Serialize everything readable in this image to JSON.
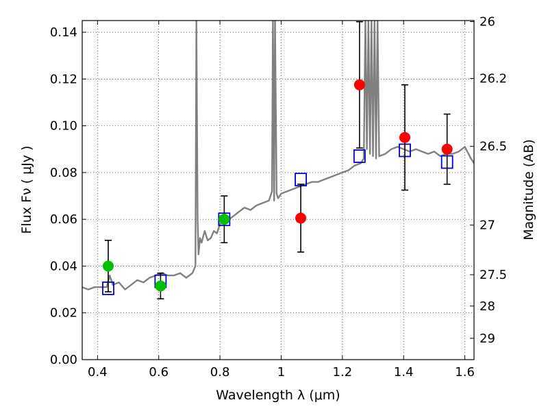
{
  "chart_data": {
    "type": "scatter",
    "xlabel": "Wavelength  λ (μm)",
    "ylabel": "Flux  Fν  ( μJy )",
    "ylabel_right": "Magnitude (AB)",
    "xlim": [
      0.35,
      1.63
    ],
    "ylim": [
      0,
      0.145
    ],
    "grid": true,
    "x_ticks": [
      {
        "value": 0.4,
        "label": "0.4"
      },
      {
        "value": 0.6,
        "label": "0.6"
      },
      {
        "value": 0.8,
        "label": "0.8"
      },
      {
        "value": 1.0,
        "label": "1"
      },
      {
        "value": 1.2,
        "label": "1.2"
      },
      {
        "value": 1.4,
        "label": "1.4"
      },
      {
        "value": 1.6,
        "label": "1.6"
      }
    ],
    "y_ticks": [
      {
        "value": 0.0,
        "label": "0.00"
      },
      {
        "value": 0.02,
        "label": "0.02"
      },
      {
        "value": 0.04,
        "label": "0.04"
      },
      {
        "value": 0.06,
        "label": "0.06"
      },
      {
        "value": 0.08,
        "label": "0.08"
      },
      {
        "value": 0.1,
        "label": "0.10"
      },
      {
        "value": 0.12,
        "label": "0.12"
      },
      {
        "value": 0.14,
        "label": "0.14"
      }
    ],
    "mag_ticks": [
      {
        "value": 26,
        "label": "26"
      },
      {
        "value": 26.2,
        "label": "26.2"
      },
      {
        "value": 26.5,
        "label": "26.5"
      },
      {
        "value": 27,
        "label": "27"
      },
      {
        "value": 27.5,
        "label": "27.5"
      },
      {
        "value": 28,
        "label": "28"
      },
      {
        "value": 29,
        "label": "29"
      }
    ],
    "series": [
      {
        "style": "line",
        "color": "#808080",
        "x": [
          0.35,
          0.37,
          0.39,
          0.41,
          0.43,
          0.44,
          0.45,
          0.47,
          0.49,
          0.51,
          0.53,
          0.55,
          0.57,
          0.59,
          0.61,
          0.63,
          0.65,
          0.67,
          0.69,
          0.71,
          0.72,
          0.723,
          0.727,
          0.73,
          0.735,
          0.74,
          0.75,
          0.76,
          0.77,
          0.78,
          0.79,
          0.8,
          0.82,
          0.84,
          0.86,
          0.88,
          0.9,
          0.92,
          0.94,
          0.96,
          0.97,
          0.973,
          0.977,
          0.98,
          0.985,
          0.99,
          1.0,
          1.02,
          1.04,
          1.06,
          1.08,
          1.1,
          1.12,
          1.14,
          1.16,
          1.18,
          1.2,
          1.22,
          1.24,
          1.26,
          1.27,
          1.275,
          1.28,
          1.285,
          1.29,
          1.295,
          1.3,
          1.305,
          1.31,
          1.315,
          1.32,
          1.34,
          1.36,
          1.38,
          1.4,
          1.42,
          1.44,
          1.46,
          1.48,
          1.5,
          1.52,
          1.54,
          1.56,
          1.58,
          1.6,
          1.62,
          1.63
        ],
        "y": [
          0.031,
          0.03,
          0.031,
          0.031,
          0.031,
          0.036,
          0.032,
          0.033,
          0.03,
          0.032,
          0.034,
          0.033,
          0.035,
          0.036,
          0.037,
          0.036,
          0.036,
          0.037,
          0.035,
          0.037,
          0.04,
          0.145,
          0.06,
          0.045,
          0.052,
          0.05,
          0.055,
          0.051,
          0.052,
          0.055,
          0.054,
          0.058,
          0.059,
          0.061,
          0.063,
          0.065,
          0.064,
          0.066,
          0.067,
          0.068,
          0.072,
          0.145,
          0.068,
          0.145,
          0.071,
          0.069,
          0.071,
          0.072,
          0.073,
          0.074,
          0.075,
          0.076,
          0.076,
          0.077,
          0.078,
          0.079,
          0.08,
          0.081,
          0.083,
          0.084,
          0.086,
          0.145,
          0.09,
          0.145,
          0.088,
          0.145,
          0.087,
          0.145,
          0.086,
          0.145,
          0.087,
          0.088,
          0.09,
          0.091,
          0.09,
          0.089,
          0.09,
          0.089,
          0.088,
          0.089,
          0.087,
          0.088,
          0.088,
          0.089,
          0.091,
          0.086,
          0.084
        ]
      },
      {
        "style": "squares",
        "color": "#0000cc",
        "x": [
          0.435,
          0.606,
          0.814,
          1.064,
          1.256,
          1.404,
          1.542
        ],
        "y": [
          0.0305,
          0.0335,
          0.06,
          0.077,
          0.087,
          0.0895,
          0.0845
        ]
      },
      {
        "style": "circles",
        "color": "#00c000",
        "x": [
          0.435,
          0.606,
          0.814
        ],
        "y": [
          0.04,
          0.0315,
          0.06
        ],
        "err_low": [
          0.011,
          0.0055,
          0.01
        ],
        "err_high": [
          0.011,
          0.0055,
          0.01
        ]
      },
      {
        "style": "circles",
        "color": "#ff0000",
        "x": [
          1.064,
          1.256,
          1.404,
          1.542
        ],
        "y": [
          0.0605,
          0.1175,
          0.095,
          0.09
        ],
        "err_low": [
          0.0145,
          0.027,
          0.0225,
          0.015
        ],
        "err_high": [
          0.0145,
          0.027,
          0.0225,
          0.015
        ]
      }
    ]
  }
}
